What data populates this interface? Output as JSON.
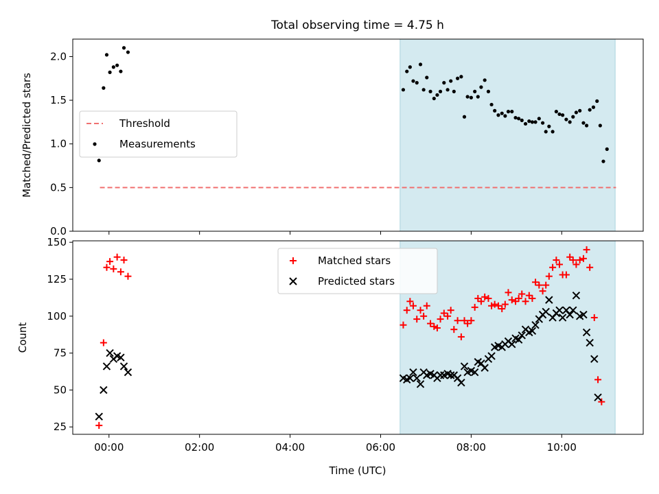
{
  "figure": {
    "title": "Total observing time = 4.75 h",
    "xlabel": "Time (UTC)"
  },
  "chart_data": [
    {
      "type": "scatter",
      "panel": "top",
      "ylabel": "Matched/Predicted stars",
      "xlim": [
        -0.8,
        11.8
      ],
      "ylim": [
        0,
        2.2
      ],
      "yticks": [
        0.0,
        0.5,
        1.0,
        1.5,
        2.0
      ],
      "ytick_labels": [
        "0.0",
        "0.5",
        "1.0",
        "1.5",
        "2.0"
      ],
      "xticks": [
        0,
        2,
        4,
        6,
        8,
        10
      ],
      "xtick_labels": [
        "",
        "",
        "",
        "",
        "",
        ""
      ],
      "shaded_span": {
        "x0": 6.43,
        "x1": 11.18,
        "color": "#d4eaf0"
      },
      "legend_position": "center-left",
      "series": [
        {
          "name": "Threshold",
          "kind": "dashed-line",
          "color": "#f07070",
          "points": [
            [
              -0.2,
              0.5
            ],
            [
              11.2,
              0.5
            ]
          ]
        },
        {
          "name": "Measurements",
          "kind": "dots",
          "color": "#000000",
          "points": [
            [
              -0.22,
              0.81
            ],
            [
              -0.12,
              1.64
            ],
            [
              -0.05,
              2.02
            ],
            [
              0.02,
              1.82
            ],
            [
              0.1,
              1.88
            ],
            [
              0.18,
              1.9
            ],
            [
              0.26,
              1.83
            ],
            [
              0.33,
              2.1
            ],
            [
              0.42,
              2.05
            ],
            [
              6.5,
              1.62
            ],
            [
              6.58,
              1.83
            ],
            [
              6.65,
              1.88
            ],
            [
              6.72,
              1.72
            ],
            [
              6.8,
              1.7
            ],
            [
              6.88,
              1.91
            ],
            [
              6.95,
              1.62
            ],
            [
              7.02,
              1.76
            ],
            [
              7.1,
              1.6
            ],
            [
              7.18,
              1.52
            ],
            [
              7.25,
              1.56
            ],
            [
              7.32,
              1.6
            ],
            [
              7.4,
              1.7
            ],
            [
              7.48,
              1.62
            ],
            [
              7.55,
              1.72
            ],
            [
              7.62,
              1.6
            ],
            [
              7.7,
              1.75
            ],
            [
              7.78,
              1.77
            ],
            [
              7.85,
              1.31
            ],
            [
              7.92,
              1.54
            ],
            [
              8.0,
              1.53
            ],
            [
              8.08,
              1.6
            ],
            [
              8.15,
              1.54
            ],
            [
              8.22,
              1.65
            ],
            [
              8.3,
              1.73
            ],
            [
              8.38,
              1.6
            ],
            [
              8.45,
              1.45
            ],
            [
              8.52,
              1.38
            ],
            [
              8.6,
              1.33
            ],
            [
              8.68,
              1.35
            ],
            [
              8.75,
              1.32
            ],
            [
              8.82,
              1.37
            ],
            [
              8.9,
              1.37
            ],
            [
              8.98,
              1.3
            ],
            [
              9.05,
              1.29
            ],
            [
              9.12,
              1.27
            ],
            [
              9.2,
              1.23
            ],
            [
              9.28,
              1.26
            ],
            [
              9.35,
              1.25
            ],
            [
              9.42,
              1.25
            ],
            [
              9.5,
              1.29
            ],
            [
              9.58,
              1.24
            ],
            [
              9.65,
              1.14
            ],
            [
              9.72,
              1.2
            ],
            [
              9.8,
              1.14
            ],
            [
              9.88,
              1.37
            ],
            [
              9.95,
              1.34
            ],
            [
              10.02,
              1.33
            ],
            [
              10.1,
              1.28
            ],
            [
              10.18,
              1.25
            ],
            [
              10.25,
              1.31
            ],
            [
              10.32,
              1.36
            ],
            [
              10.4,
              1.38
            ],
            [
              10.48,
              1.24
            ],
            [
              10.55,
              1.21
            ],
            [
              10.62,
              1.39
            ],
            [
              10.7,
              1.42
            ],
            [
              10.78,
              1.49
            ],
            [
              10.85,
              1.21
            ],
            [
              10.92,
              0.8
            ],
            [
              11.0,
              0.94
            ]
          ]
        }
      ]
    },
    {
      "type": "scatter",
      "panel": "bottom",
      "ylabel": "Count",
      "xlim": [
        -0.8,
        11.8
      ],
      "ylim": [
        20,
        151
      ],
      "yticks": [
        25,
        50,
        75,
        100,
        125,
        150
      ],
      "ytick_labels": [
        "25",
        "50",
        "75",
        "100",
        "125",
        "150"
      ],
      "xticks": [
        0,
        2,
        4,
        6,
        8,
        10
      ],
      "xtick_labels": [
        "00:00",
        "02:00",
        "04:00",
        "06:00",
        "08:00",
        "10:00"
      ],
      "shaded_span": {
        "x0": 6.43,
        "x1": 11.18,
        "color": "#d4eaf0"
      },
      "legend_position": "top-center",
      "series": [
        {
          "name": "Matched stars",
          "kind": "plus",
          "color": "#ff0000",
          "points": [
            [
              -0.22,
              26
            ],
            [
              -0.12,
              82
            ],
            [
              -0.05,
              133
            ],
            [
              0.02,
              137
            ],
            [
              0.1,
              132
            ],
            [
              0.18,
              140
            ],
            [
              0.26,
              130
            ],
            [
              0.33,
              138
            ],
            [
              0.42,
              127
            ],
            [
              6.5,
              94
            ],
            [
              6.58,
              104
            ],
            [
              6.65,
              110
            ],
            [
              6.72,
              107
            ],
            [
              6.8,
              98
            ],
            [
              6.88,
              104
            ],
            [
              6.95,
              100
            ],
            [
              7.02,
              107
            ],
            [
              7.1,
              95
            ],
            [
              7.18,
              93
            ],
            [
              7.25,
              92
            ],
            [
              7.32,
              98
            ],
            [
              7.4,
              102
            ],
            [
              7.48,
              100
            ],
            [
              7.55,
              104
            ],
            [
              7.62,
              91
            ],
            [
              7.7,
              97
            ],
            [
              7.78,
              86
            ],
            [
              7.85,
              97
            ],
            [
              7.92,
              95
            ],
            [
              8.0,
              97
            ],
            [
              8.08,
              106
            ],
            [
              8.15,
              112
            ],
            [
              8.22,
              110
            ],
            [
              8.3,
              113
            ],
            [
              8.38,
              112
            ],
            [
              8.45,
              107
            ],
            [
              8.52,
              108
            ],
            [
              8.6,
              107
            ],
            [
              8.68,
              105
            ],
            [
              8.75,
              108
            ],
            [
              8.82,
              116
            ],
            [
              8.9,
              111
            ],
            [
              8.98,
              110
            ],
            [
              9.05,
              112
            ],
            [
              9.12,
              115
            ],
            [
              9.2,
              110
            ],
            [
              9.28,
              114
            ],
            [
              9.35,
              112
            ],
            [
              9.42,
              123
            ],
            [
              9.5,
              121
            ],
            [
              9.58,
              117
            ],
            [
              9.65,
              121
            ],
            [
              9.72,
              127
            ],
            [
              9.8,
              133
            ],
            [
              9.88,
              138
            ],
            [
              9.95,
              135
            ],
            [
              10.02,
              128
            ],
            [
              10.1,
              128
            ],
            [
              10.18,
              140
            ],
            [
              10.25,
              138
            ],
            [
              10.32,
              135
            ],
            [
              10.4,
              138
            ],
            [
              10.48,
              139
            ],
            [
              10.55,
              145
            ],
            [
              10.62,
              133
            ],
            [
              10.72,
              99
            ],
            [
              10.8,
              57
            ],
            [
              10.88,
              42
            ]
          ]
        },
        {
          "name": "Predicted stars",
          "kind": "cross",
          "color": "#000000",
          "points": [
            [
              -0.22,
              32
            ],
            [
              -0.12,
              50
            ],
            [
              -0.05,
              66
            ],
            [
              0.02,
              75
            ],
            [
              0.1,
              71
            ],
            [
              0.18,
              73
            ],
            [
              0.26,
              72
            ],
            [
              0.33,
              66
            ],
            [
              0.42,
              62
            ],
            [
              6.5,
              58
            ],
            [
              6.58,
              57
            ],
            [
              6.65,
              58
            ],
            [
              6.72,
              62
            ],
            [
              6.8,
              58
            ],
            [
              6.88,
              54
            ],
            [
              6.95,
              62
            ],
            [
              7.02,
              60
            ],
            [
              7.1,
              61
            ],
            [
              7.18,
              60
            ],
            [
              7.25,
              58
            ],
            [
              7.32,
              60
            ],
            [
              7.4,
              60
            ],
            [
              7.48,
              61
            ],
            [
              7.55,
              60
            ],
            [
              7.62,
              60
            ],
            [
              7.7,
              58
            ],
            [
              7.78,
              55
            ],
            [
              7.85,
              66
            ],
            [
              7.92,
              62
            ],
            [
              8.0,
              63
            ],
            [
              8.08,
              62
            ],
            [
              8.15,
              69
            ],
            [
              8.22,
              68
            ],
            [
              8.3,
              65
            ],
            [
              8.38,
              71
            ],
            [
              8.45,
              73
            ],
            [
              8.52,
              79
            ],
            [
              8.6,
              80
            ],
            [
              8.68,
              79
            ],
            [
              8.75,
              81
            ],
            [
              8.82,
              83
            ],
            [
              8.9,
              81
            ],
            [
              8.98,
              85
            ],
            [
              9.05,
              84
            ],
            [
              9.12,
              87
            ],
            [
              9.2,
              91
            ],
            [
              9.28,
              89
            ],
            [
              9.35,
              90
            ],
            [
              9.42,
              94
            ],
            [
              9.5,
              98
            ],
            [
              9.58,
              101
            ],
            [
              9.65,
              103
            ],
            [
              9.72,
              111
            ],
            [
              9.8,
              99
            ],
            [
              9.88,
              102
            ],
            [
              9.95,
              104
            ],
            [
              10.02,
              99
            ],
            [
              10.1,
              104
            ],
            [
              10.18,
              101
            ],
            [
              10.25,
              104
            ],
            [
              10.32,
              114
            ],
            [
              10.4,
              100
            ],
            [
              10.48,
              101
            ],
            [
              10.55,
              89
            ],
            [
              10.62,
              82
            ],
            [
              10.72,
              71
            ],
            [
              10.8,
              45
            ]
          ]
        }
      ]
    }
  ]
}
